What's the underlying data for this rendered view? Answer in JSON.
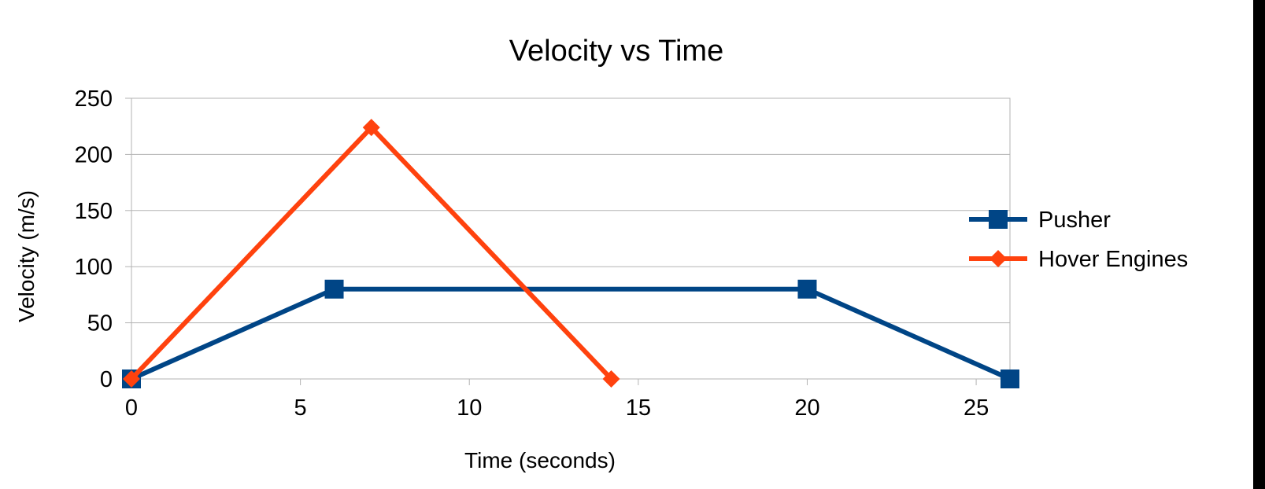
{
  "chart_data": {
    "type": "line",
    "title": "Velocity vs Time",
    "xlabel": "Time (seconds)",
    "ylabel": "Velocity (m/s)",
    "xlim": [
      0,
      26
    ],
    "ylim": [
      0,
      250
    ],
    "xticks": [
      0,
      5,
      10,
      15,
      20,
      25
    ],
    "yticks": [
      0,
      50,
      100,
      150,
      200,
      250
    ],
    "grid": "horizontal",
    "legend_position": "right",
    "series": [
      {
        "name": "Pusher",
        "color": "#004586",
        "marker": "square",
        "x": [
          0,
          6,
          20,
          26
        ],
        "y": [
          0,
          80,
          80,
          0
        ]
      },
      {
        "name": "Hover Engines",
        "color": "#ff420e",
        "marker": "diamond",
        "x": [
          0,
          7.1,
          14.2
        ],
        "y": [
          0,
          224,
          0
        ]
      }
    ]
  }
}
